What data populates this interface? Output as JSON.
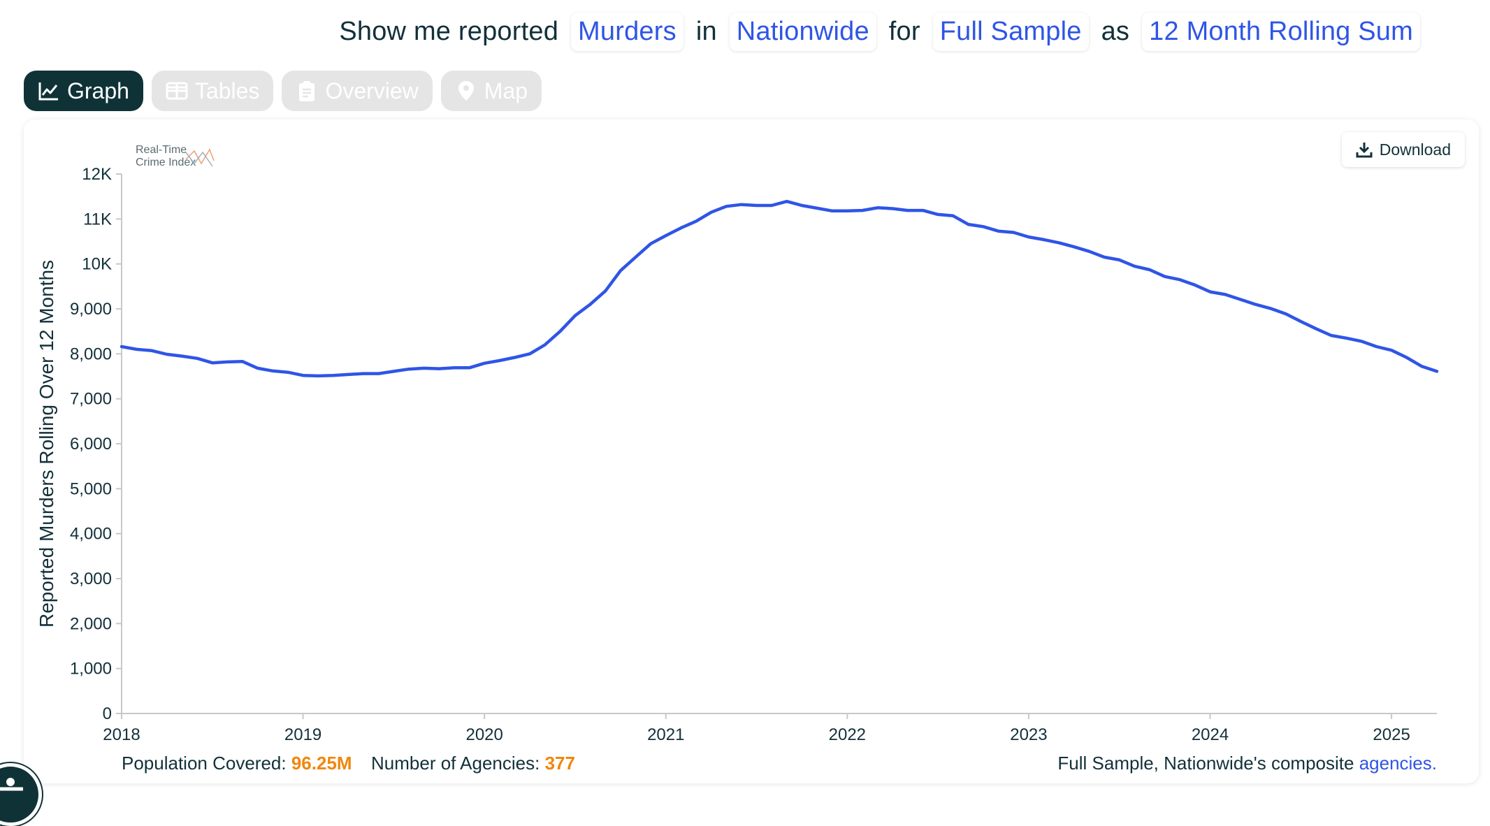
{
  "query": {
    "lead": "Show me reported",
    "crime": "Murders",
    "in_word": "in",
    "location": "Nationwide",
    "for_word": "for",
    "sample": "Full Sample",
    "as_word": "as",
    "measure": "12 Month Rolling Sum"
  },
  "tabs": [
    {
      "label": "Graph",
      "icon": "line-chart-icon",
      "active": true
    },
    {
      "label": "Tables",
      "icon": "table-icon",
      "active": false
    },
    {
      "label": "Overview",
      "icon": "clipboard-icon",
      "active": false
    },
    {
      "label": "Map",
      "icon": "map-pin-icon",
      "active": false
    }
  ],
  "download_label": "Download",
  "logo": {
    "line1": "Real-Time",
    "line2": "Crime Index"
  },
  "footer": {
    "population_label": "Population Covered:",
    "population_value": "96.25M",
    "agencies_label": "Number of Agencies:",
    "agencies_value": "377",
    "composite_text": "Full Sample, Nationwide's composite",
    "composite_link": "agencies."
  },
  "colors": {
    "line": "#2f55e6",
    "accent": "#2f55e6",
    "orange": "#f0870d",
    "dark": "#0f3237"
  },
  "chart_data": {
    "type": "line",
    "ylabel": "Reported Murders Rolling Over 12 Months",
    "ylim": [
      0,
      12000
    ],
    "yticks": [
      0,
      1000,
      2000,
      3000,
      4000,
      5000,
      6000,
      7000,
      8000,
      9000,
      10000,
      11000,
      12000
    ],
    "ytick_labels": [
      "0",
      "1,000",
      "2,000",
      "3,000",
      "4,000",
      "5,000",
      "6,000",
      "7,000",
      "8,000",
      "9,000",
      "10K",
      "11K",
      "12K"
    ],
    "xlim": [
      2018.0,
      2025.25
    ],
    "xticks": [
      2018,
      2019,
      2020,
      2021,
      2022,
      2023,
      2024,
      2025
    ],
    "xtick_labels": [
      "2018",
      "2019",
      "2020",
      "2021",
      "2022",
      "2023",
      "2024",
      "2025"
    ],
    "grid": false,
    "series": [
      {
        "x": [
          2018.0,
          2018.083,
          2018.167,
          2018.25,
          2018.333,
          2018.417,
          2018.5,
          2018.583,
          2018.667,
          2018.75,
          2018.833,
          2018.917,
          2019.0,
          2019.083,
          2019.167,
          2019.25,
          2019.333,
          2019.417,
          2019.5,
          2019.583,
          2019.667,
          2019.75,
          2019.833,
          2019.917,
          2020.0,
          2020.083,
          2020.167,
          2020.25,
          2020.333,
          2020.417,
          2020.5,
          2020.583,
          2020.667,
          2020.75,
          2020.833,
          2020.917,
          2021.0,
          2021.083,
          2021.167,
          2021.25,
          2021.333,
          2021.417,
          2021.5,
          2021.583,
          2021.667,
          2021.75,
          2021.833,
          2021.917,
          2022.0,
          2022.083,
          2022.167,
          2022.25,
          2022.333,
          2022.417,
          2022.5,
          2022.583,
          2022.667,
          2022.75,
          2022.833,
          2022.917,
          2023.0,
          2023.083,
          2023.167,
          2023.25,
          2023.333,
          2023.417,
          2023.5,
          2023.583,
          2023.667,
          2023.75,
          2023.833,
          2023.917,
          2024.0,
          2024.083,
          2024.167,
          2024.25,
          2024.333,
          2024.417,
          2024.5,
          2024.583,
          2024.667,
          2024.75,
          2024.833,
          2024.917,
          2025.0,
          2025.083,
          2025.167,
          2025.25
        ],
        "y": [
          8160,
          8100,
          8070,
          7990,
          7950,
          7900,
          7800,
          7820,
          7830,
          7680,
          7620,
          7590,
          7520,
          7510,
          7520,
          7540,
          7560,
          7560,
          7610,
          7660,
          7680,
          7670,
          7690,
          7690,
          7790,
          7850,
          7920,
          8000,
          8200,
          8500,
          8850,
          9100,
          9400,
          9850,
          10150,
          10450,
          10630,
          10800,
          10950,
          11150,
          11280,
          11320,
          11300,
          11300,
          11390,
          11300,
          11240,
          11180,
          11180,
          11190,
          11250,
          11230,
          11190,
          11190,
          11100,
          11070,
          10880,
          10830,
          10730,
          10700,
          10600,
          10540,
          10470,
          10380,
          10280,
          10150,
          10090,
          9950,
          9870,
          9720,
          9650,
          9530,
          9380,
          9320,
          9210,
          9100,
          9010,
          8890,
          8720,
          8560,
          8410,
          8350,
          8280,
          8160,
          8080,
          7920,
          7720,
          7610
        ]
      }
    ]
  }
}
